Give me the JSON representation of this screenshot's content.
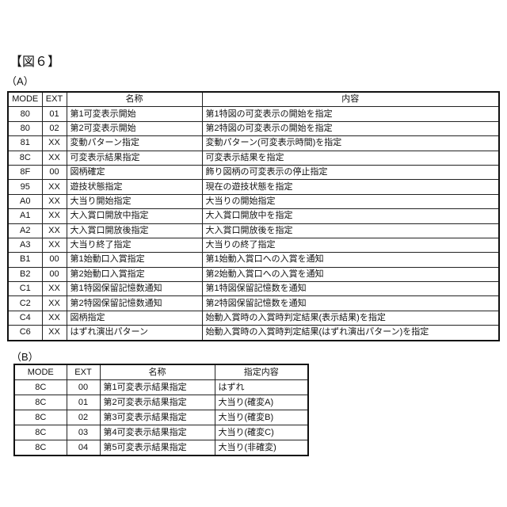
{
  "figure_title": "【図６】",
  "table_a": {
    "label": "（A）",
    "headers": [
      "MODE",
      "EXT",
      "名称",
      "内容"
    ],
    "rows": [
      [
        "80",
        "01",
        "第1可変表示開始",
        "第1特図の可変表示の開始を指定"
      ],
      [
        "80",
        "02",
        "第2可変表示開始",
        "第2特図の可変表示の開始を指定"
      ],
      [
        "81",
        "XX",
        "変動パターン指定",
        "変動パターン(可変表示時間)を指定"
      ],
      [
        "8C",
        "XX",
        "可変表示結果指定",
        "可変表示結果を指定"
      ],
      [
        "8F",
        "00",
        "図柄確定",
        "飾り図柄の可変表示の停止指定"
      ],
      [
        "95",
        "XX",
        "遊技状態指定",
        "現在の遊技状態を指定"
      ],
      [
        "A0",
        "XX",
        "大当り開始指定",
        "大当りの開始指定"
      ],
      [
        "A1",
        "XX",
        "大入賞口開放中指定",
        "大入賞口開放中を指定"
      ],
      [
        "A2",
        "XX",
        "大入賞口開放後指定",
        "大入賞口開放後を指定"
      ],
      [
        "A3",
        "XX",
        "大当り終了指定",
        "大当りの終了指定"
      ],
      [
        "B1",
        "00",
        "第1始動口入賞指定",
        "第1始動入賞口への入賞を通知"
      ],
      [
        "B2",
        "00",
        "第2始動口入賞指定",
        "第2始動入賞口への入賞を通知"
      ],
      [
        "C1",
        "XX",
        "第1特図保留記憶数通知",
        "第1特図保留記憶数を通知"
      ],
      [
        "C2",
        "XX",
        "第2特図保留記憶数通知",
        "第2特図保留記憶数を通知"
      ],
      [
        "C4",
        "XX",
        "図柄指定",
        "始動入賞時の入賞時判定結果(表示結果)を指定"
      ],
      [
        "C6",
        "XX",
        "はずれ演出パターン",
        "始動入賞時の入賞時判定結果(はずれ演出パターン)を指定"
      ]
    ]
  },
  "table_b": {
    "label": "（B）",
    "headers": [
      "MODE",
      "EXT",
      "名称",
      "指定内容"
    ],
    "rows": [
      [
        "8C",
        "00",
        "第1可変表示結果指定",
        "はずれ"
      ],
      [
        "8C",
        "01",
        "第2可変表示結果指定",
        "大当り(確変A)"
      ],
      [
        "8C",
        "02",
        "第3可変表示結果指定",
        "大当り(確変B)"
      ],
      [
        "8C",
        "03",
        "第4可変表示結果指定",
        "大当り(確変C)"
      ],
      [
        "8C",
        "04",
        "第5可変表示結果指定",
        "大当り(非確変)"
      ]
    ]
  }
}
